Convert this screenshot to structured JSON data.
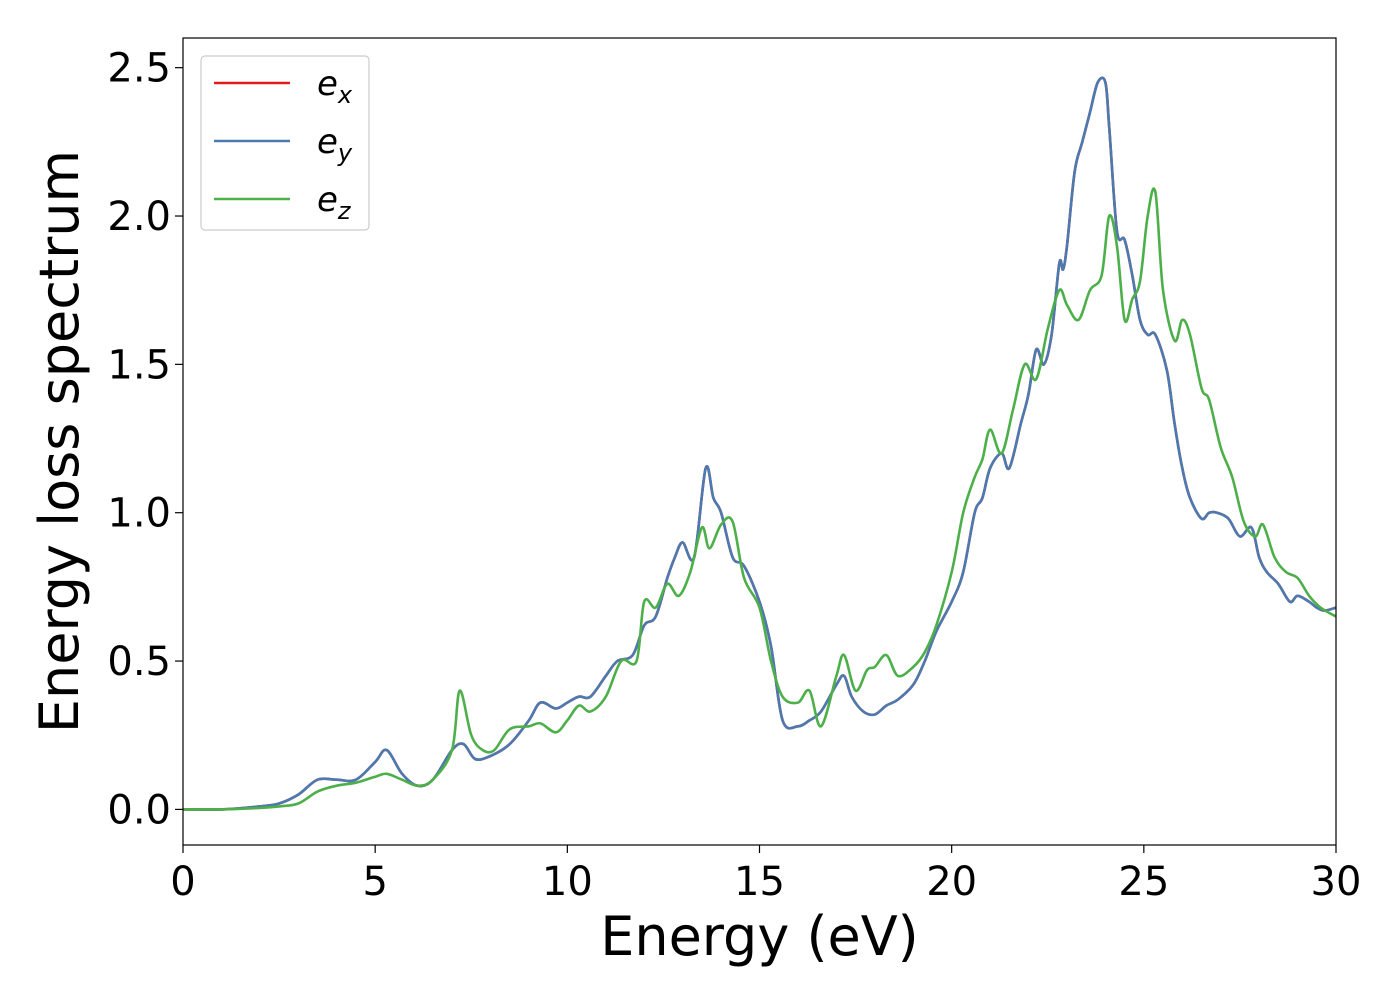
{
  "chart_data": {
    "type": "line",
    "xlabel": "Energy (eV)",
    "ylabel": "Energy loss spectrum",
    "xlim": [
      0,
      30
    ],
    "ylim": [
      -0.12,
      2.6
    ],
    "xticks": [
      0,
      5,
      10,
      15,
      20,
      25,
      30
    ],
    "yticks": [
      0.0,
      0.5,
      1.0,
      1.5,
      2.0,
      2.5
    ],
    "xtick_labels": [
      "0",
      "5",
      "10",
      "15",
      "20",
      "25",
      "30"
    ],
    "ytick_labels": [
      "0.0",
      "0.5",
      "1.0",
      "1.5",
      "2.0",
      "2.5"
    ],
    "grid": false,
    "legend_position": "top-left",
    "series": [
      {
        "name": "e_x",
        "legend_main": "e",
        "legend_sub": "x",
        "color": "#e41a1c",
        "x": [
          0,
          1,
          2,
          2.5,
          3,
          3.5,
          4,
          4.5,
          5,
          5.3,
          5.7,
          6.1,
          6.5,
          7,
          7.3,
          7.6,
          8,
          8.5,
          9,
          9.3,
          9.7,
          10,
          10.3,
          10.6,
          11,
          11.3,
          11.7,
          12,
          12.3,
          12.6,
          12.8,
          13.0,
          13.3,
          13.6,
          13.8,
          14.0,
          14.3,
          14.6,
          15,
          15.3,
          15.6,
          16,
          16.3,
          16.6,
          17,
          17.2,
          17.4,
          17.7,
          18,
          18.3,
          18.6,
          19,
          19.3,
          19.6,
          20,
          20.3,
          20.6,
          20.8,
          21,
          21.3,
          21.5,
          21.8,
          22.0,
          22.2,
          22.4,
          22.6,
          22.8,
          22.9,
          23.0,
          23.2,
          23.4,
          23.6,
          23.8,
          24.0,
          24.1,
          24.3,
          24.5,
          24.7,
          24.9,
          25.1,
          25.3,
          25.6,
          25.8,
          26.0,
          26.2,
          26.5,
          26.7,
          26.9,
          27.2,
          27.5,
          27.8,
          28.0,
          28.2,
          28.5,
          28.8,
          29.0,
          29.3,
          29.5,
          29.7,
          30.0
        ],
        "y": [
          0,
          0,
          0.01,
          0.02,
          0.05,
          0.1,
          0.1,
          0.1,
          0.16,
          0.2,
          0.12,
          0.08,
          0.1,
          0.2,
          0.22,
          0.17,
          0.18,
          0.22,
          0.3,
          0.36,
          0.34,
          0.36,
          0.38,
          0.38,
          0.45,
          0.5,
          0.52,
          0.62,
          0.65,
          0.78,
          0.85,
          0.9,
          0.85,
          1.15,
          1.05,
          1.0,
          0.85,
          0.82,
          0.7,
          0.55,
          0.3,
          0.28,
          0.3,
          0.33,
          0.42,
          0.45,
          0.38,
          0.33,
          0.32,
          0.35,
          0.37,
          0.42,
          0.5,
          0.6,
          0.7,
          0.8,
          1.0,
          1.05,
          1.15,
          1.2,
          1.15,
          1.3,
          1.4,
          1.55,
          1.5,
          1.6,
          1.84,
          1.82,
          1.9,
          2.15,
          2.25,
          2.35,
          2.45,
          2.45,
          2.3,
          1.95,
          1.92,
          1.8,
          1.65,
          1.6,
          1.6,
          1.48,
          1.3,
          1.15,
          1.05,
          0.98,
          1.0,
          1.0,
          0.98,
          0.92,
          0.95,
          0.85,
          0.8,
          0.76,
          0.7,
          0.72,
          0.7,
          0.68,
          0.67,
          0.68
        ]
      },
      {
        "name": "e_y",
        "legend_main": "e",
        "legend_sub": "y",
        "color": "#4a7ab0",
        "x": [
          0,
          1,
          2,
          2.5,
          3,
          3.5,
          4,
          4.5,
          5,
          5.3,
          5.7,
          6.1,
          6.5,
          7,
          7.3,
          7.6,
          8,
          8.5,
          9,
          9.3,
          9.7,
          10,
          10.3,
          10.6,
          11,
          11.3,
          11.7,
          12,
          12.3,
          12.6,
          12.8,
          13.0,
          13.3,
          13.6,
          13.8,
          14.0,
          14.3,
          14.6,
          15,
          15.3,
          15.6,
          16,
          16.3,
          16.6,
          17,
          17.2,
          17.4,
          17.7,
          18,
          18.3,
          18.6,
          19,
          19.3,
          19.6,
          20,
          20.3,
          20.6,
          20.8,
          21,
          21.3,
          21.5,
          21.8,
          22.0,
          22.2,
          22.4,
          22.6,
          22.8,
          22.9,
          23.0,
          23.2,
          23.4,
          23.6,
          23.8,
          24.0,
          24.1,
          24.3,
          24.5,
          24.7,
          24.9,
          25.1,
          25.3,
          25.6,
          25.8,
          26.0,
          26.2,
          26.5,
          26.7,
          26.9,
          27.2,
          27.5,
          27.8,
          28.0,
          28.2,
          28.5,
          28.8,
          29.0,
          29.3,
          29.5,
          29.7,
          30.0
        ],
        "y": [
          0,
          0,
          0.01,
          0.02,
          0.05,
          0.1,
          0.1,
          0.1,
          0.16,
          0.2,
          0.12,
          0.08,
          0.1,
          0.2,
          0.22,
          0.17,
          0.18,
          0.22,
          0.3,
          0.36,
          0.34,
          0.36,
          0.38,
          0.38,
          0.45,
          0.5,
          0.52,
          0.62,
          0.65,
          0.78,
          0.85,
          0.9,
          0.85,
          1.15,
          1.05,
          1.0,
          0.85,
          0.82,
          0.7,
          0.55,
          0.3,
          0.28,
          0.3,
          0.33,
          0.42,
          0.45,
          0.38,
          0.33,
          0.32,
          0.35,
          0.37,
          0.42,
          0.5,
          0.6,
          0.7,
          0.8,
          1.0,
          1.05,
          1.15,
          1.2,
          1.15,
          1.3,
          1.4,
          1.55,
          1.5,
          1.6,
          1.84,
          1.82,
          1.9,
          2.15,
          2.25,
          2.35,
          2.45,
          2.45,
          2.3,
          1.95,
          1.92,
          1.8,
          1.65,
          1.6,
          1.6,
          1.48,
          1.3,
          1.15,
          1.05,
          0.98,
          1.0,
          1.0,
          0.98,
          0.92,
          0.95,
          0.85,
          0.8,
          0.76,
          0.7,
          0.72,
          0.7,
          0.68,
          0.67,
          0.68
        ]
      },
      {
        "name": "e_z",
        "legend_main": "e",
        "legend_sub": "z",
        "color": "#4daf4a",
        "x": [
          0,
          1,
          2,
          2.5,
          3,
          3.5,
          4,
          4.5,
          5,
          5.3,
          5.7,
          6.1,
          6.5,
          7,
          7.2,
          7.5,
          7.8,
          8.1,
          8.5,
          9,
          9.3,
          9.7,
          10,
          10.3,
          10.6,
          11,
          11.4,
          11.8,
          12,
          12.3,
          12.6,
          12.9,
          13.2,
          13.5,
          13.7,
          14.0,
          14.3,
          14.6,
          15,
          15.3,
          15.6,
          16,
          16.3,
          16.6,
          17,
          17.2,
          17.5,
          17.8,
          18,
          18.3,
          18.6,
          19,
          19.3,
          19.6,
          20,
          20.3,
          20.6,
          20.8,
          21,
          21.3,
          21.6,
          21.9,
          22.2,
          22.5,
          22.8,
          23.0,
          23.3,
          23.6,
          23.9,
          24.1,
          24.3,
          24.5,
          24.7,
          24.9,
          25.1,
          25.3,
          25.5,
          25.8,
          26.0,
          26.2,
          26.5,
          26.7,
          27.0,
          27.3,
          27.6,
          27.9,
          28.1,
          28.4,
          28.7,
          29.0,
          29.3,
          29.6,
          30.0
        ],
        "y": [
          0,
          0,
          0.005,
          0.01,
          0.02,
          0.06,
          0.08,
          0.09,
          0.11,
          0.12,
          0.1,
          0.08,
          0.1,
          0.2,
          0.4,
          0.25,
          0.2,
          0.2,
          0.27,
          0.28,
          0.29,
          0.26,
          0.3,
          0.35,
          0.33,
          0.38,
          0.5,
          0.5,
          0.7,
          0.68,
          0.76,
          0.72,
          0.8,
          0.95,
          0.88,
          0.96,
          0.97,
          0.78,
          0.68,
          0.5,
          0.38,
          0.36,
          0.4,
          0.28,
          0.45,
          0.52,
          0.4,
          0.47,
          0.48,
          0.52,
          0.45,
          0.48,
          0.53,
          0.62,
          0.8,
          1.0,
          1.12,
          1.18,
          1.28,
          1.2,
          1.35,
          1.5,
          1.45,
          1.62,
          1.75,
          1.7,
          1.65,
          1.75,
          1.8,
          2.0,
          1.9,
          1.65,
          1.72,
          1.78,
          2.0,
          2.08,
          1.75,
          1.58,
          1.65,
          1.6,
          1.42,
          1.38,
          1.22,
          1.12,
          0.97,
          0.92,
          0.96,
          0.85,
          0.8,
          0.78,
          0.72,
          0.68,
          0.65
        ]
      }
    ]
  }
}
